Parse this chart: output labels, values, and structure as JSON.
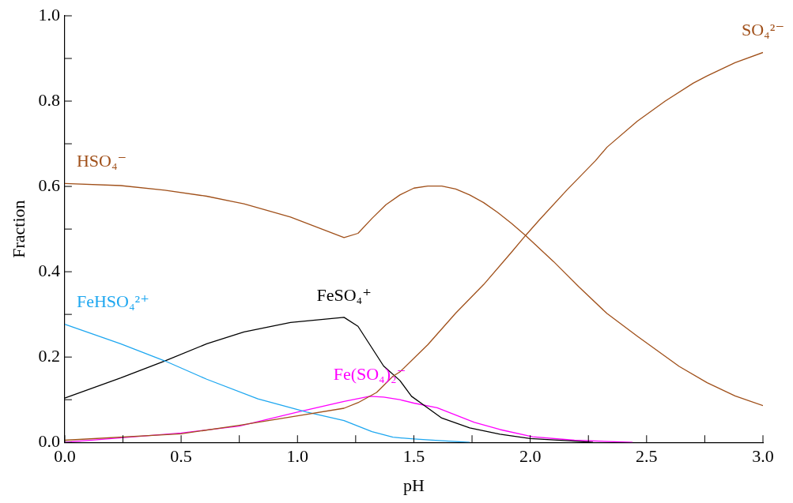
{
  "chart_data": {
    "type": "line",
    "xlabel": "pH",
    "ylabel": "Fraction",
    "xlim": [
      0,
      3
    ],
    "ylim": [
      0,
      1
    ],
    "xticks": [
      {
        "value": 0,
        "label": "0.0"
      },
      {
        "value": 0.25,
        "label": null
      },
      {
        "value": 0.5,
        "label": "0.5"
      },
      {
        "value": 0.75,
        "label": null
      },
      {
        "value": 1,
        "label": "1.0"
      },
      {
        "value": 1.25,
        "label": null
      },
      {
        "value": 1.5,
        "label": "1.5"
      },
      {
        "value": 1.75,
        "label": null
      },
      {
        "value": 2,
        "label": "2.0"
      },
      {
        "value": 2.25,
        "label": null
      },
      {
        "value": 2.5,
        "label": "2.5"
      },
      {
        "value": 2.75,
        "label": null
      },
      {
        "value": 3,
        "label": "3.0"
      }
    ],
    "yticks": [
      {
        "value": 0,
        "label": "0.0"
      },
      {
        "value": 0.1,
        "label": null
      },
      {
        "value": 0.2,
        "label": "0.2"
      },
      {
        "value": 0.3,
        "label": null
      },
      {
        "value": 0.4,
        "label": "0.4"
      },
      {
        "value": 0.5,
        "label": null
      },
      {
        "value": 0.6,
        "label": "0.6"
      },
      {
        "value": 0.7,
        "label": null
      },
      {
        "value": 0.8,
        "label": "0.8"
      },
      {
        "value": 0.9,
        "label": null
      },
      {
        "value": 1,
        "label": "1.0"
      }
    ],
    "grid": false,
    "legend": false,
    "marker": "none",
    "line_style": "solid",
    "series": [
      {
        "name": "HSO₄⁻",
        "color": "#a0501a",
        "x": [
          0,
          0.24,
          0.43,
          0.61,
          0.77,
          0.97,
          1.2,
          1.26,
          1.32,
          1.38,
          1.44,
          1.5,
          1.56,
          1.62,
          1.68,
          1.74,
          1.8,
          1.86,
          1.92,
          1.98,
          2.1,
          2.21,
          2.33,
          2.46,
          2.64,
          2.76,
          2.88,
          3
        ],
        "values": [
          0.607,
          0.602,
          0.591,
          0.577,
          0.559,
          0.528,
          0.48,
          0.49,
          0.525,
          0.557,
          0.58,
          0.596,
          0.601,
          0.601,
          0.594,
          0.58,
          0.562,
          0.539,
          0.513,
          0.485,
          0.424,
          0.364,
          0.302,
          0.249,
          0.178,
          0.14,
          0.109,
          0.086
        ]
      },
      {
        "name": "SO₄²⁻",
        "color": "#a0501a",
        "x": [
          0,
          0.5,
          0.75,
          1,
          1.2,
          1.26,
          1.34,
          1.41,
          1.44,
          1.56,
          1.68,
          1.8,
          1.92,
          1.98,
          2.04,
          2.16,
          2.28,
          2.33,
          2.46,
          2.58,
          2.7,
          2.76,
          2.88,
          3
        ],
        "values": [
          0.005,
          0.02,
          0.04,
          0.062,
          0.08,
          0.093,
          0.117,
          0.155,
          0.165,
          0.229,
          0.303,
          0.37,
          0.446,
          0.485,
          0.522,
          0.593,
          0.66,
          0.692,
          0.753,
          0.8,
          0.842,
          0.859,
          0.89,
          0.914
        ]
      },
      {
        "name": "FeHSO₄²⁺",
        "color": "#1ea7f0",
        "x": [
          0,
          0.24,
          0.43,
          0.61,
          0.83,
          1.04,
          1.2,
          1.26,
          1.32,
          1.41,
          1.5,
          1.62,
          1.74
        ],
        "values": [
          0.277,
          0.231,
          0.191,
          0.148,
          0.102,
          0.071,
          0.051,
          0.038,
          0.025,
          0.012,
          0.008,
          0.004,
          0
        ]
      },
      {
        "name": "FeSO₄⁺",
        "color": "#000000",
        "x": [
          0,
          0.24,
          0.43,
          0.61,
          0.77,
          0.97,
          1.2,
          1.26,
          1.37,
          1.44,
          1.49,
          1.62,
          1.74,
          1.87,
          2,
          2.19,
          2.27
        ],
        "values": [
          0.104,
          0.151,
          0.191,
          0.231,
          0.259,
          0.281,
          0.293,
          0.272,
          0.179,
          0.145,
          0.108,
          0.057,
          0.034,
          0.019,
          0.009,
          0.003,
          0
        ]
      },
      {
        "name": "Fe(SO₄)₂⁻",
        "color": "#ff00ff",
        "x": [
          0,
          0.5,
          0.75,
          1,
          1.2,
          1.31,
          1.37,
          1.44,
          1.5,
          1.6,
          1.76,
          1.87,
          2.01,
          2.19,
          2.44
        ],
        "values": [
          0,
          0.022,
          0.038,
          0.071,
          0.096,
          0.108,
          0.106,
          0.1,
          0.092,
          0.081,
          0.047,
          0.03,
          0.013,
          0.005,
          0
        ]
      }
    ]
  }
}
